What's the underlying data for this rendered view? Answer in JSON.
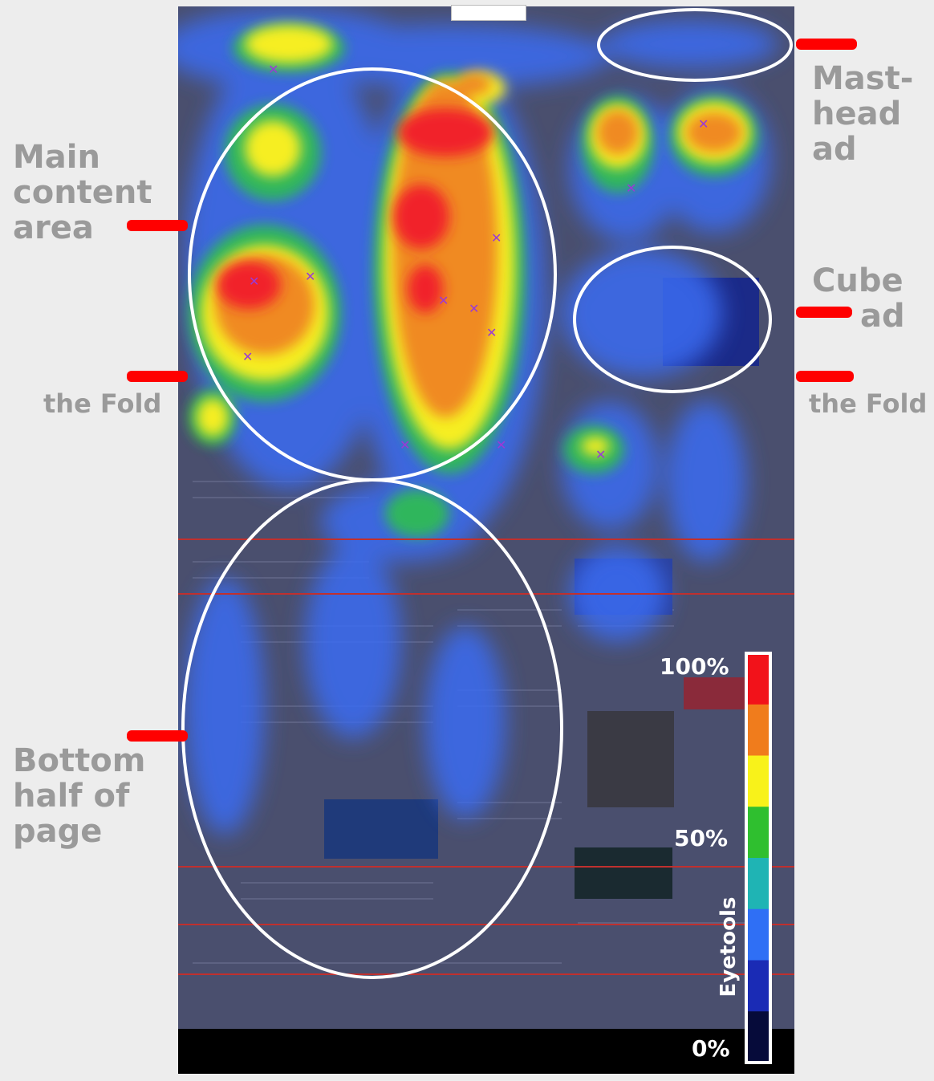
{
  "labels": {
    "masthead_ad": [
      "Mast-",
      "head",
      "ad"
    ],
    "main_content_area": [
      "Main",
      "content",
      "area"
    ],
    "cube_ad": [
      "Cube",
      "ad"
    ],
    "bottom_half": [
      "Bottom",
      "half of",
      "page"
    ],
    "fold_left": "the Fold",
    "fold_right": "the Fold"
  },
  "legend": {
    "label_100": "100%",
    "label_50": "50%",
    "label_0": "0%",
    "brand": "Eyetools",
    "scale_colors": [
      "#f2121a",
      "#f07c1c",
      "#f8f21a",
      "#2fbf2f",
      "#1fb4b4",
      "#2f6ff5",
      "#1a2bb5",
      "#060b3a"
    ]
  },
  "colors": {
    "marker": "#ff0000",
    "ellipse": "#ffffff",
    "page_background": "#4a4f6e",
    "label_grey": "#9a9a9a"
  }
}
